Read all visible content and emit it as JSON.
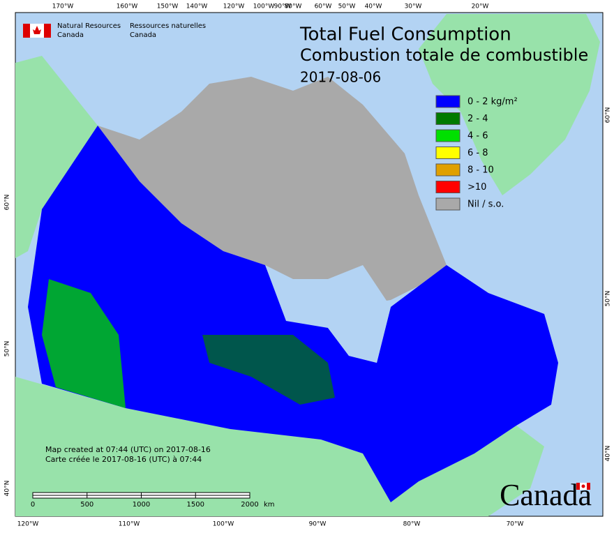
{
  "header": {
    "agency_en": [
      "Natural Resources",
      "Canada"
    ],
    "agency_fr": [
      "Ressources naturelles",
      "Canada"
    ]
  },
  "title": [
    "Total Fuel Consumption",
    "Combustion totale de combustible",
    "2017-08-06"
  ],
  "legend": [
    {
      "label": "0 - 2 kg/m²",
      "color": "#0000ff"
    },
    {
      "label": "2 - 4",
      "color": "#007a00"
    },
    {
      "label": "4 - 6",
      "color": "#00e000"
    },
    {
      "label": "6 - 8",
      "color": "#ffff00"
    },
    {
      "label": "8 - 10",
      "color": "#e0a000"
    },
    {
      "label": ">10",
      "color": "#ff0000"
    },
    {
      "label": "Nil / s.o.",
      "color": "#a9a9a9"
    }
  ],
  "graticule": {
    "top": [
      "170°W",
      "160°W",
      "150°W",
      "140°W",
      "120°W",
      "100°W",
      "90°W",
      "80°W",
      "60°W",
      "50°W",
      "40°W",
      "30°W",
      "20°W"
    ],
    "bottom": [
      "120°W",
      "110°W",
      "100°W",
      "90°W",
      "80°W",
      "70°W"
    ],
    "left": [
      "60°N",
      "50°N",
      "40°N"
    ],
    "right": [
      "60°N",
      "50°N",
      "40°N"
    ]
  },
  "credits": [
    "Map created at 07:44 (UTC) on 2017-08-16",
    "Carte créée le 2017-08-16 (UTC) à 07:44"
  ],
  "scale_bar": {
    "ticks": [
      0,
      500,
      1000,
      1500,
      2000
    ],
    "unit": "km"
  },
  "wordmark": "Canada"
}
